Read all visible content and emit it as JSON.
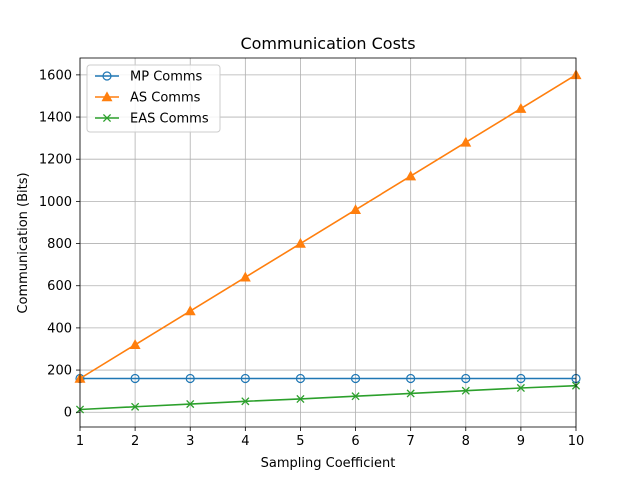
{
  "chart_data": {
    "type": "line",
    "title": "Communication Costs",
    "xlabel": "Sampling Coefficient",
    "ylabel": "Communication (Bits)",
    "x": [
      1,
      2,
      3,
      4,
      5,
      6,
      7,
      8,
      9,
      10
    ],
    "xlim": [
      1,
      10
    ],
    "ylim": [
      -70,
      1680
    ],
    "xticks": [
      1,
      2,
      3,
      4,
      5,
      6,
      7,
      8,
      9,
      10
    ],
    "yticks": [
      0,
      200,
      400,
      600,
      800,
      1000,
      1200,
      1400,
      1600
    ],
    "grid": true,
    "legend_position": "top-left",
    "series": [
      {
        "name": "MP Comms",
        "color": "#1f77b4",
        "marker": "circle-open",
        "values": [
          160,
          160,
          160,
          160,
          160,
          160,
          160,
          160,
          160,
          160
        ]
      },
      {
        "name": "AS Comms",
        "color": "#ff7f0e",
        "marker": "triangle",
        "values": [
          160,
          320,
          480,
          640,
          800,
          960,
          1120,
          1280,
          1440,
          1600
        ]
      },
      {
        "name": "EAS Comms",
        "color": "#2ca02c",
        "marker": "x",
        "values": [
          13,
          26,
          39,
          52,
          63,
          76,
          89,
          102,
          115,
          126
        ]
      }
    ]
  }
}
